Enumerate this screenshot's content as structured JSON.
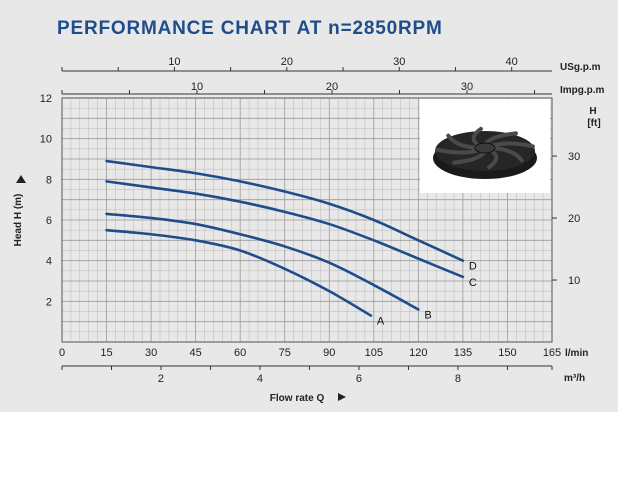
{
  "chart_data": {
    "type": "line",
    "title": "PERFORMANCE CHART AT n=2850RPM",
    "ylabel": "Head H (m)",
    "ylabel_right": "H",
    "ylabel_right_unit": "[ft]",
    "xlabel": "Flow rate Q",
    "x_unit": "l/min",
    "x_alt_unit": "m³/h",
    "top_unit_1": "USg.p.m",
    "top_unit_2": "Impg.p.m",
    "xlim": [
      0,
      165
    ],
    "ylim": [
      0,
      12
    ],
    "grid": true,
    "x_ticks": [
      "0",
      "15",
      "30",
      "45",
      "60",
      "75",
      "90",
      "105",
      "120",
      "135",
      "150",
      "165"
    ],
    "y_ticks": [
      "2",
      "4",
      "6",
      "8",
      "10",
      "12"
    ],
    "y_ft_ticks": [
      "10",
      "20",
      "30"
    ],
    "m3h_ticks": [
      "2",
      "4",
      "6",
      "8"
    ],
    "usgpm_ticks": [
      "10",
      "20",
      "30",
      "40"
    ],
    "impgpm_ticks": [
      "10",
      "20",
      "30"
    ],
    "series": [
      {
        "name": "A",
        "x": [
          15,
          30,
          45,
          60,
          75,
          90,
          104
        ],
        "y": [
          5.5,
          5.3,
          5.0,
          4.5,
          3.6,
          2.5,
          1.3
        ]
      },
      {
        "name": "B",
        "x": [
          15,
          30,
          45,
          60,
          75,
          90,
          105,
          120
        ],
        "y": [
          6.3,
          6.1,
          5.8,
          5.3,
          4.7,
          3.9,
          2.8,
          1.6
        ]
      },
      {
        "name": "C",
        "x": [
          15,
          30,
          45,
          60,
          75,
          90,
          105,
          120,
          135
        ],
        "y": [
          7.9,
          7.6,
          7.3,
          6.9,
          6.4,
          5.8,
          5.0,
          4.1,
          3.2
        ]
      },
      {
        "name": "D",
        "x": [
          15,
          30,
          45,
          60,
          75,
          90,
          105,
          120,
          135
        ],
        "y": [
          8.9,
          8.6,
          8.3,
          7.9,
          7.4,
          6.8,
          6.0,
          5.0,
          4.0
        ]
      }
    ],
    "colors": {
      "curve": "#1f4d8b",
      "title": "#1f4d8b",
      "grid": "#b8b8b8",
      "text": "#222222"
    },
    "inset_image": "impeller"
  }
}
